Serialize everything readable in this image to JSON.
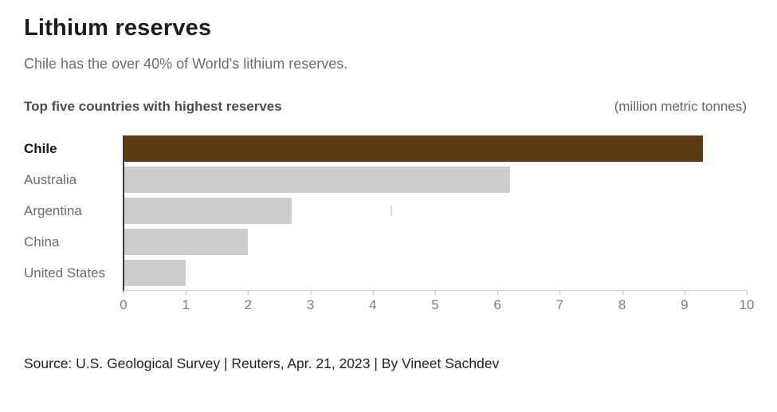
{
  "header": {
    "title": "Lithium reserves",
    "subtitle": "Chile has the over 40% of World's lithium reserves."
  },
  "chart_header": {
    "section_title": "Top five countries with highest reserves",
    "units_label": "(million metric tonnes)"
  },
  "chart_data": {
    "type": "bar",
    "orientation": "horizontal",
    "title": "Top five countries with highest reserves",
    "units": "million metric tonnes",
    "categories": [
      "Chile",
      "Australia",
      "Argentina",
      "China",
      "United States"
    ],
    "values": [
      9.3,
      6.2,
      2.7,
      2.0,
      1.0
    ],
    "xlim": [
      0,
      10
    ],
    "xticks": [
      0,
      1,
      2,
      3,
      4,
      5,
      6,
      7,
      8,
      9,
      10
    ],
    "grid": false,
    "legend": false,
    "highlight_index": 0,
    "highlight_color": "#5d3a13",
    "bar_color": "#cdcdcd",
    "highlight_label_color": "#161616",
    "label_color": "#6b6b6b"
  },
  "footer": {
    "source": "Source: U.S. Geological Survey | Reuters, Apr. 21, 2023 | By Vineet Sachdev"
  }
}
